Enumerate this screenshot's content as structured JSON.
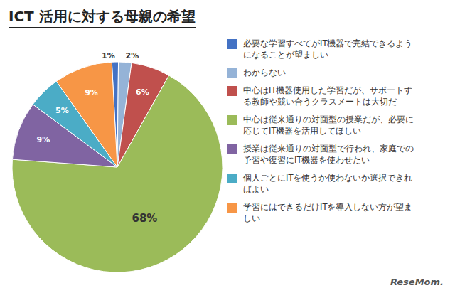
{
  "chart_data": {
    "type": "pie",
    "title": "ICT 活用に対する母親の希望",
    "categories": [
      "必要な学習すべてがIT機器で完結できるよう\nになることが望ましい",
      "わからない",
      "中心はIT機器使用した学習だが、サポートす\nる教師や競い合うクラスメートは大切だ",
      "中心は従来通りの対面型の授業だが、必要に\n応じてIT機器を活用してほしい",
      "授業は従来通りの対面型で行われ、家庭での\n予習や復習にIT機器を使わせたい",
      "個人ごとにITを使うか使わないか選択できれ\nばよい",
      "学習にはできるだけITを導入しない方が望ま\nしい"
    ],
    "values": [
      1,
      2,
      6,
      68,
      9,
      5,
      9
    ],
    "value_labels": [
      "1%",
      "2%",
      "6%",
      "68%",
      "9%",
      "5%",
      "9%"
    ],
    "colors": [
      "#4472C4",
      "#95B3D7",
      "#C0504D",
      "#9BBB59",
      "#8064A2",
      "#4BACC6",
      "#F79646"
    ],
    "data_labels": true,
    "legend": "right",
    "annotations": [
      "ReseMom."
    ]
  }
}
